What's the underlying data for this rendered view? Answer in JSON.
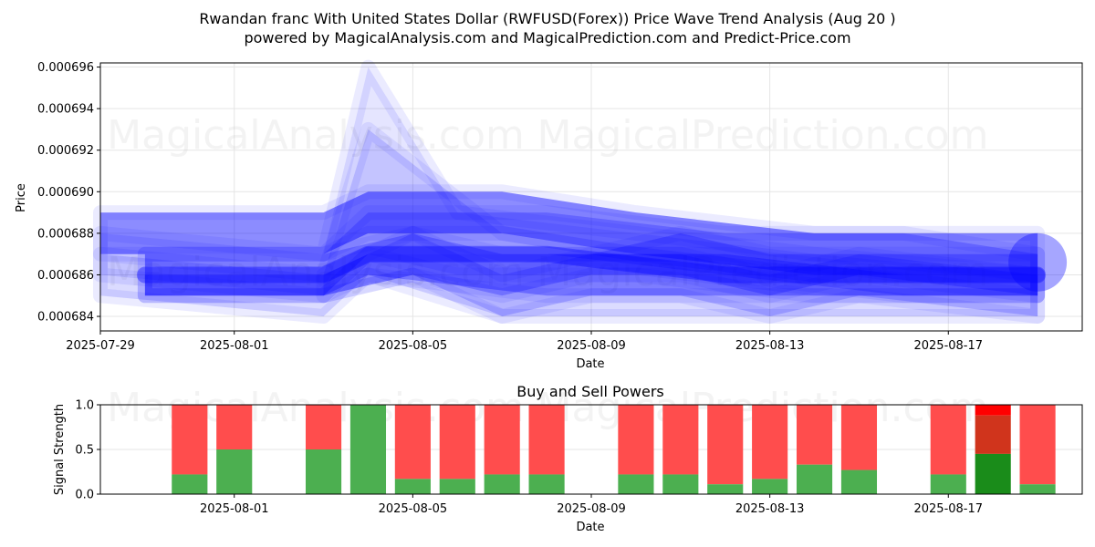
{
  "title_line1": "Rwandan franc With United States Dollar (RWFUSD(Forex)) Price Wave Trend Analysis (Aug 20 )",
  "title_line2": "powered by MagicalAnalysis.com and MagicalPrediction.com and Predict-Price.com",
  "watermarks": [
    "MagicalAnalysis.com",
    "MagicalPrediction.com"
  ],
  "chart_data": [
    {
      "type": "area",
      "xlabel": "Date",
      "ylabel": "Price",
      "x_range": [
        "2025-07-29",
        "2025-08-20"
      ],
      "ylim": [
        0.0006833,
        0.0006962
      ],
      "x_ticks": [
        "2025-07-29",
        "2025-08-01",
        "2025-08-05",
        "2025-08-09",
        "2025-08-13",
        "2025-08-17"
      ],
      "y_ticks": [
        "0.000684",
        "0.000686",
        "0.000688",
        "0.000690",
        "0.000692",
        "0.000694",
        "0.000696"
      ],
      "grid": true,
      "color": "#0000ff",
      "bands": [
        {
          "x": [
            "2025-07-29",
            "2025-08-03",
            "2025-08-04",
            "2025-08-06",
            "2025-08-10",
            "2025-08-14",
            "2025-08-19"
          ],
          "upper": [
            0.000688,
            0.000687,
            0.000696,
            0.000689,
            0.000688,
            0.000687,
            0.000686
          ],
          "lower": [
            0.000686,
            0.000685,
            0.000687,
            0.000686,
            0.000686,
            0.000685,
            0.000685
          ]
        },
        {
          "x": [
            "2025-07-29",
            "2025-08-03",
            "2025-08-04",
            "2025-08-07",
            "2025-08-10",
            "2025-08-14",
            "2025-08-19"
          ],
          "upper": [
            0.000687,
            0.000686,
            0.000693,
            0.000688,
            0.000687,
            0.000686,
            0.000686
          ],
          "lower": [
            0.000685,
            0.000684,
            0.000686,
            0.000684,
            0.000684,
            0.000684,
            0.000684
          ]
        },
        {
          "x": [
            "2025-07-29",
            "2025-08-03",
            "2025-08-04",
            "2025-08-07",
            "2025-08-10",
            "2025-08-14",
            "2025-08-19"
          ],
          "upper": [
            0.000689,
            0.000689,
            0.00069,
            0.00069,
            0.000689,
            0.000688,
            0.000688
          ],
          "lower": [
            0.000687,
            0.000687,
            0.000688,
            0.000688,
            0.000687,
            0.000686,
            0.000686
          ]
        },
        {
          "x": [
            "2025-07-30",
            "2025-08-03",
            "2025-08-04",
            "2025-08-08",
            "2025-08-12",
            "2025-08-16",
            "2025-08-19"
          ],
          "upper": [
            0.000687,
            0.000687,
            0.000689,
            0.000689,
            0.000688,
            0.000688,
            0.000687
          ],
          "lower": [
            0.000685,
            0.000685,
            0.000687,
            0.000687,
            0.000686,
            0.000685,
            0.000685
          ]
        },
        {
          "x": [
            "2025-07-30",
            "2025-08-03",
            "2025-08-04",
            "2025-08-08",
            "2025-08-12",
            "2025-08-16",
            "2025-08-19"
          ],
          "upper": [
            0.000686,
            0.000686,
            0.000687,
            0.000687,
            0.000687,
            0.000686,
            0.000686
          ],
          "lower": [
            0.000685,
            0.000685,
            0.000686,
            0.000685,
            0.000685,
            0.000685,
            0.000685
          ]
        },
        {
          "x": [
            "2025-07-30",
            "2025-08-03",
            "2025-08-05",
            "2025-08-07",
            "2025-08-09",
            "2025-08-11",
            "2025-08-13",
            "2025-08-15",
            "2025-08-19"
          ],
          "upper": [
            0.000687,
            0.000687,
            0.000688,
            0.000687,
            0.000687,
            0.000688,
            0.000687,
            0.000687,
            0.000687
          ],
          "lower": [
            0.000685,
            0.000685,
            0.000686,
            0.000685,
            0.000686,
            0.000686,
            0.000685,
            0.000686,
            0.000685
          ]
        },
        {
          "x": [
            "2025-08-03",
            "2025-08-05",
            "2025-08-07",
            "2025-08-09",
            "2025-08-11",
            "2025-08-13",
            "2025-08-15",
            "2025-08-19"
          ],
          "upper": [
            0.000686,
            0.000688,
            0.000686,
            0.000687,
            0.000687,
            0.000686,
            0.000687,
            0.000686
          ],
          "lower": [
            0.000685,
            0.000686,
            0.000684,
            0.000685,
            0.000685,
            0.000684,
            0.000685,
            0.000684
          ]
        }
      ],
      "line": {
        "x": [
          "2025-07-30",
          "2025-08-03",
          "2025-08-04",
          "2025-08-08",
          "2025-08-12",
          "2025-08-16",
          "2025-08-19"
        ],
        "y": [
          0.000686,
          0.000686,
          0.000687,
          0.000687,
          0.000686,
          0.000686,
          0.000686
        ]
      },
      "end_marker": {
        "x": "2025-08-19",
        "y": 0.0006866
      }
    },
    {
      "type": "bar",
      "title": "Buy and Sell Powers",
      "xlabel": "Date",
      "ylabel": "Signal Strength",
      "ylim": [
        0,
        1
      ],
      "y_ticks": [
        "0.0",
        "0.5",
        "1.0"
      ],
      "x_ticks": [
        "2025-08-01",
        "2025-08-05",
        "2025-08-09",
        "2025-08-13",
        "2025-08-17"
      ],
      "x_range": [
        "2025-07-29",
        "2025-08-20"
      ],
      "colors": {
        "buy": "#4caf50",
        "sell": "#ff4d4d",
        "buy_strong": "#1a8c1a",
        "sell_strong": "#ff0000",
        "mid": "#d0341c"
      },
      "bars": [
        {
          "date": "2025-07-31",
          "buy": 0.22
        },
        {
          "date": "2025-08-01",
          "buy": 0.5
        },
        {
          "date": "2025-08-03",
          "buy": 0.5
        },
        {
          "date": "2025-08-04",
          "buy": 1.0
        },
        {
          "date": "2025-08-05",
          "buy": 0.17
        },
        {
          "date": "2025-08-06",
          "buy": 0.17
        },
        {
          "date": "2025-08-07",
          "buy": 0.22
        },
        {
          "date": "2025-08-08",
          "buy": 0.22
        },
        {
          "date": "2025-08-10",
          "buy": 0.22
        },
        {
          "date": "2025-08-11",
          "buy": 0.22
        },
        {
          "date": "2025-08-12",
          "buy": 0.11
        },
        {
          "date": "2025-08-13",
          "buy": 0.17
        },
        {
          "date": "2025-08-14",
          "buy": 0.33
        },
        {
          "date": "2025-08-15",
          "buy": 0.27
        },
        {
          "date": "2025-08-17",
          "buy": 0.22
        },
        {
          "date": "2025-08-18",
          "buy": 0.45,
          "highlight": true
        },
        {
          "date": "2025-08-19",
          "buy": 0.11
        }
      ]
    }
  ]
}
